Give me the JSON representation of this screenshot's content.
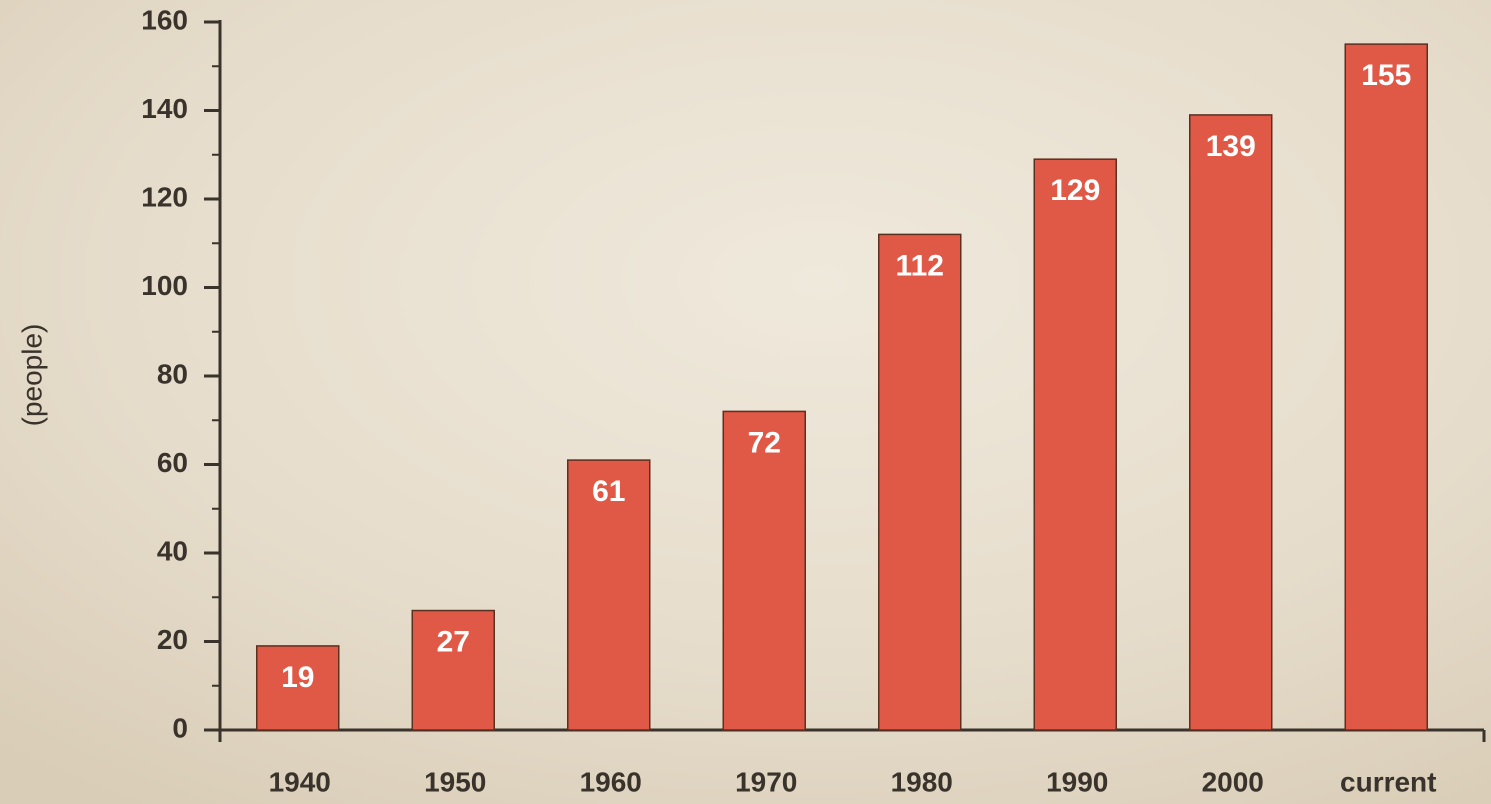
{
  "chart_data": {
    "type": "bar",
    "y_label": "(people)",
    "categories": [
      "1940",
      "1950",
      "1960",
      "1970",
      "1980",
      "1990",
      "2000",
      "current"
    ],
    "values": [
      19,
      27,
      61,
      72,
      112,
      129,
      139,
      155
    ],
    "color": "#e05846",
    "ylim": [
      0,
      160
    ],
    "yticks": [
      0,
      20,
      40,
      60,
      80,
      100,
      120,
      140,
      160
    ],
    "yminorticks": [
      10,
      30,
      50,
      70,
      90,
      110,
      130,
      150
    ]
  }
}
